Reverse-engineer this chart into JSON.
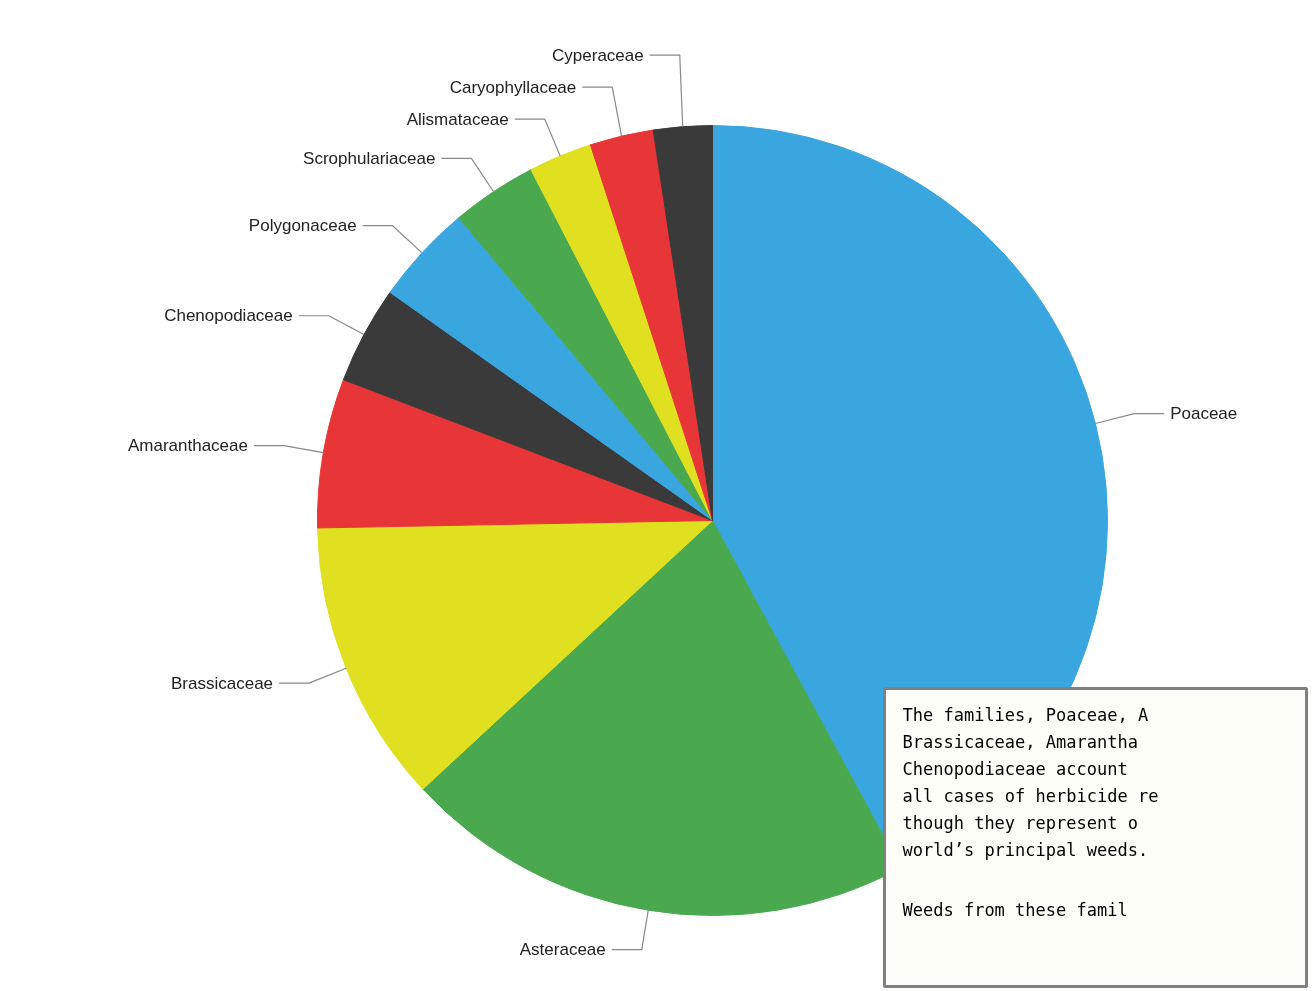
{
  "chart_data": {
    "type": "pie",
    "categories": [
      "Poaceae",
      "Asteraceae",
      "Brassicaceae",
      "Amaranthaceae",
      "Chenopodiaceae",
      "Polygonaceae",
      "Scrophulariaceae",
      "Alismataceae",
      "Caryophyllaceae",
      "Cyperaceae"
    ],
    "values": [
      42.1,
      21,
      11.6,
      6.1,
      4,
      4.1,
      3.5,
      2.6,
      2.6,
      2.4
    ],
    "colors": [
      "#3aa6e0",
      "#4aa94f",
      "#e0e020",
      "#e83538",
      "#3a3a3a",
      "#3aa6e0",
      "#4aa94f",
      "#e0e020",
      "#e83538",
      "#3a3a3a"
    ],
    "annotations": [
      "The families, Poaceae, A\nBrassicaceae, Amarantha\nChenopodiaceae account\nall cases of herbicide re\nthough they represent o\nworld’s principal weeds.",
      "Weeds from these famil"
    ]
  }
}
